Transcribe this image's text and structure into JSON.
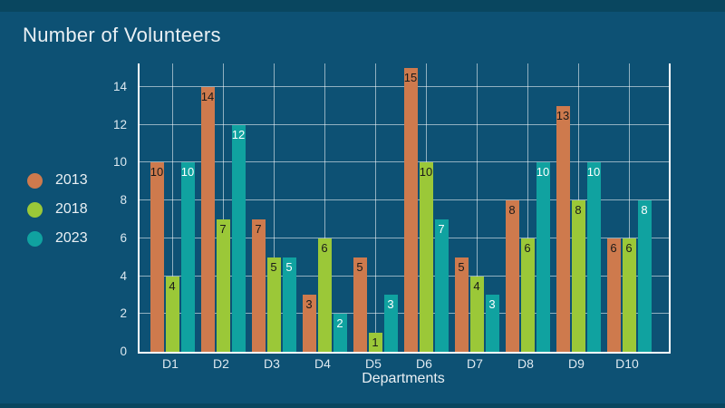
{
  "title": "Number of Volunteers",
  "x_axis_title": "Departments",
  "colors": {
    "background": "#0D5174",
    "border_strip": "#09465F",
    "axis": "#FFFFFF",
    "grid": "#FFFFFF8C",
    "title_text": "#EAF0F4",
    "tick_text": "#DDE9F0"
  },
  "chart_data": {
    "type": "bar",
    "title": "Number of Volunteers",
    "xlabel": "Departments",
    "ylabel": "",
    "categories": [
      "D1",
      "D2",
      "D3",
      "D4",
      "D5",
      "D6",
      "D7",
      "D8",
      "D9",
      "D10"
    ],
    "series": [
      {
        "name": "2013",
        "color": "#CE7A4D",
        "label_color": "#1A1A1A",
        "values": [
          10,
          14,
          7,
          3,
          5,
          15,
          5,
          8,
          13,
          6
        ]
      },
      {
        "name": "2018",
        "color": "#9BC838",
        "label_color": "#1A1A1A",
        "values": [
          4,
          7,
          5,
          6,
          1,
          10,
          4,
          6,
          8,
          6
        ]
      },
      {
        "name": "2023",
        "color": "#10A2A0",
        "label_color": "#FFFFFF",
        "values": [
          10,
          12,
          5,
          2,
          3,
          7,
          3,
          10,
          10,
          8
        ]
      }
    ],
    "yticks": [
      0,
      2,
      4,
      6,
      8,
      10,
      12,
      14
    ],
    "ylim": [
      0,
      15.25
    ],
    "grid": true,
    "legend_position": "left",
    "bar_value_labels": true
  }
}
